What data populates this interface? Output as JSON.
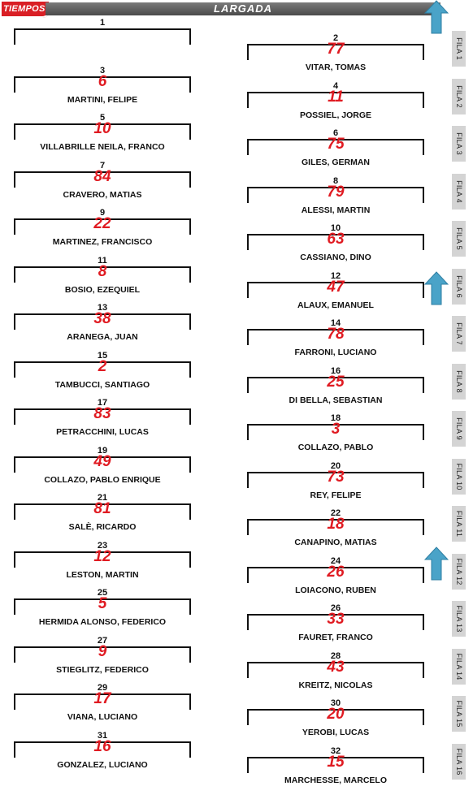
{
  "logo": {
    "text": "TIEMPOS"
  },
  "header": {
    "title": "LARGADA"
  },
  "colors": {
    "number": "#e01b22",
    "header_bg": "#5a5a5a",
    "arrow": "#4aa3c8",
    "fila_bg": "#d4d4d4"
  },
  "grid": [
    {
      "pos": "1",
      "number": "",
      "driver": ""
    },
    {
      "pos": "2",
      "number": "77",
      "driver": "VITAR, TOMAS"
    },
    {
      "pos": "3",
      "number": "6",
      "driver": "MARTINI, FELIPE"
    },
    {
      "pos": "4",
      "number": "11",
      "driver": "POSSIEL, JORGE"
    },
    {
      "pos": "5",
      "number": "10",
      "driver": "VILLABRILLE NEILA, FRANCO"
    },
    {
      "pos": "6",
      "number": "75",
      "driver": "GILES, GERMAN"
    },
    {
      "pos": "7",
      "number": "84",
      "driver": "CRAVERO, MATIAS"
    },
    {
      "pos": "8",
      "number": "79",
      "driver": "ALESSI, MARTIN"
    },
    {
      "pos": "9",
      "number": "22",
      "driver": "MARTINEZ, FRANCISCO"
    },
    {
      "pos": "10",
      "number": "63",
      "driver": "CASSIANO, DINO"
    },
    {
      "pos": "11",
      "number": "8",
      "driver": "BOSIO, EZEQUIEL"
    },
    {
      "pos": "12",
      "number": "47",
      "driver": "ALAUX, EMANUEL"
    },
    {
      "pos": "13",
      "number": "38",
      "driver": "ARANEGA, JUAN"
    },
    {
      "pos": "14",
      "number": "78",
      "driver": "FARRONI, LUCIANO"
    },
    {
      "pos": "15",
      "number": "2",
      "driver": "TAMBUCCI, SANTIAGO"
    },
    {
      "pos": "16",
      "number": "25",
      "driver": "DI BELLA, SEBASTIAN"
    },
    {
      "pos": "17",
      "number": "83",
      "driver": "PETRACCHINI, LUCAS"
    },
    {
      "pos": "18",
      "number": "3",
      "driver": "COLLAZO, PABLO"
    },
    {
      "pos": "19",
      "number": "49",
      "driver": "COLLAZO, PABLO ENRIQUE"
    },
    {
      "pos": "20",
      "number": "73",
      "driver": "REY, FELIPE"
    },
    {
      "pos": "21",
      "number": "81",
      "driver": "SALÈ, RICARDO"
    },
    {
      "pos": "22",
      "number": "18",
      "driver": "CANAPINO, MATIAS"
    },
    {
      "pos": "23",
      "number": "12",
      "driver": "LESTON, MARTIN"
    },
    {
      "pos": "24",
      "number": "26",
      "driver": "LOIACONO, RUBEN"
    },
    {
      "pos": "25",
      "number": "5",
      "driver": "HERMIDA ALONSO, FEDERICO"
    },
    {
      "pos": "26",
      "number": "33",
      "driver": "FAURET, FRANCO"
    },
    {
      "pos": "27",
      "number": "9",
      "driver": "STIEGLITZ, FEDERICO"
    },
    {
      "pos": "28",
      "number": "43",
      "driver": "KREITZ, NICOLAS"
    },
    {
      "pos": "29",
      "number": "17",
      "driver": "VIANA, LUCIANO"
    },
    {
      "pos": "30",
      "number": "20",
      "driver": "YEROBI, LUCAS"
    },
    {
      "pos": "31",
      "number": "16",
      "driver": "GONZALEZ, LUCIANO"
    },
    {
      "pos": "32",
      "number": "15",
      "driver": "MARCHESSE, MARCELO"
    }
  ],
  "filas": [
    "FILA 1",
    "FILA 2",
    "FILA 3",
    "FILA 4",
    "FILA 5",
    "FILA 6",
    "FILA 7",
    "FILA 8",
    "FILA 9",
    "FILA 10",
    "FILA 11",
    "FILA 12",
    "FILA 13",
    "FILA 14",
    "FILA 15",
    "FILA 16"
  ],
  "arrows": [
    {
      "icon": "arrow-up-icon",
      "row": 1
    },
    {
      "icon": "arrow-up-icon",
      "row": 6
    },
    {
      "icon": "arrow-up-icon",
      "row": 12
    }
  ]
}
